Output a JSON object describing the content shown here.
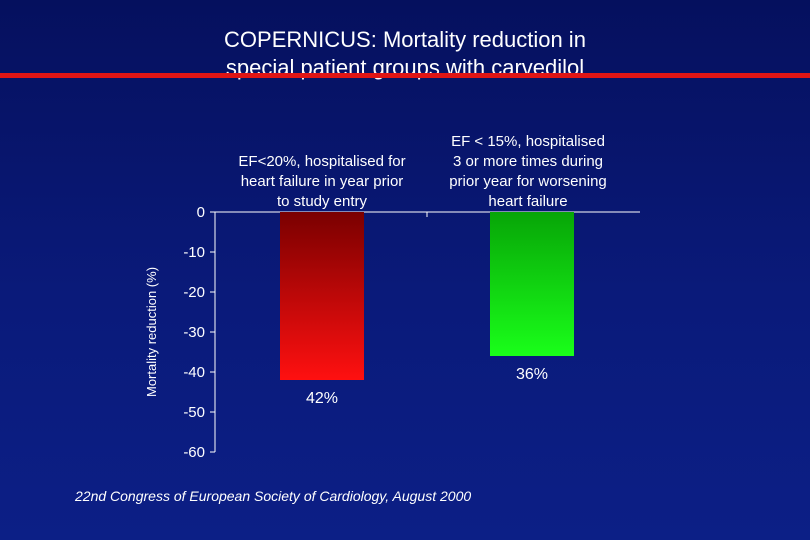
{
  "title": {
    "line1": "COPERNICUS: Mortality reduction in",
    "line2": "special patient groups with carvedilol"
  },
  "colors": {
    "background": "#0a1a7a",
    "title_rule": "#e01515",
    "bar_red_top": "#7a0000",
    "bar_red_bottom": "#ff1010",
    "bar_green_top": "#07a507",
    "bar_green_bottom": "#1aff1a"
  },
  "footer": "22nd Congress of European Society of Cardiology, August 2000",
  "chart_data": {
    "type": "bar",
    "ylabel": "Mortality reduction (%)",
    "ylim": [
      -60,
      0
    ],
    "yticks": [
      0,
      -10,
      -20,
      -30,
      -40,
      -50,
      -60
    ],
    "grid": false,
    "categories": [
      [
        "EF<20%, hospitalised for",
        "heart failure in year prior",
        "to study entry"
      ],
      [
        "EF < 15%, hospitalised",
        "3 or more times during",
        "prior year for worsening",
        "heart failure"
      ]
    ],
    "values": [
      -42,
      -36
    ],
    "data_labels": [
      "42%",
      "36%"
    ],
    "bar_colors": [
      "red",
      "green"
    ]
  }
}
